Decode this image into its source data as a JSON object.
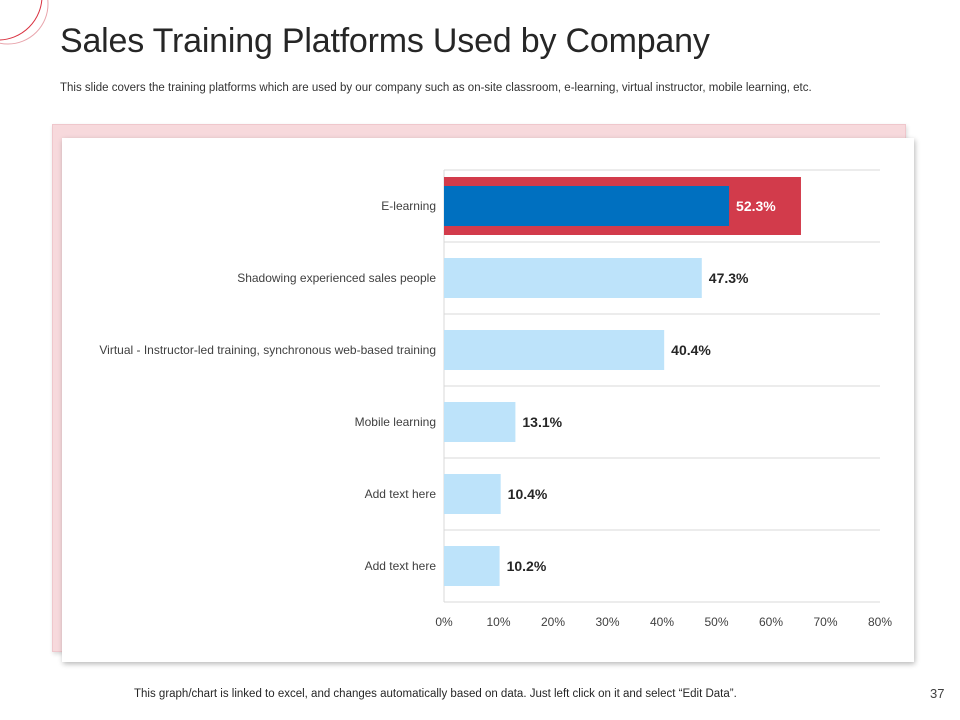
{
  "slide": {
    "title": "Sales Training Platforms Used by Company",
    "subtitle": "This slide covers the training platforms which are used by our company such as on-site classroom, e-learning, virtual instructor, mobile learning, etc.",
    "footer": "This graph/chart is linked to excel, and changes automatically based on data. Just left click on it and select “Edit Data”.",
    "page_number": "37"
  },
  "colors": {
    "accent_red": "#D23B4B",
    "highlight_blue": "#0070C0",
    "bar_light_blue": "#BDE3FA",
    "gridline": "#D9D9D9"
  },
  "chart_data": {
    "type": "bar",
    "orientation": "horizontal",
    "categories": [
      "E-learning",
      "Shadowing experienced sales people",
      "Virtual - Instructor-led training, synchronous web-based training",
      "Mobile learning",
      "Add text here",
      "Add text here"
    ],
    "values": [
      52.3,
      47.3,
      40.4,
      13.1,
      10.4,
      10.2
    ],
    "data_labels": [
      "52.3%",
      "47.3%",
      "40.4%",
      "13.1%",
      "10.4%",
      "10.2%"
    ],
    "highlighted_index": 0,
    "highlight_frame_value": 65.5,
    "xlim": [
      0,
      80
    ],
    "x_ticks": [
      "0%",
      "10%",
      "20%",
      "30%",
      "40%",
      "50%",
      "60%",
      "70%",
      "80%"
    ],
    "grid": true,
    "title": "",
    "xlabel": "",
    "ylabel": ""
  }
}
